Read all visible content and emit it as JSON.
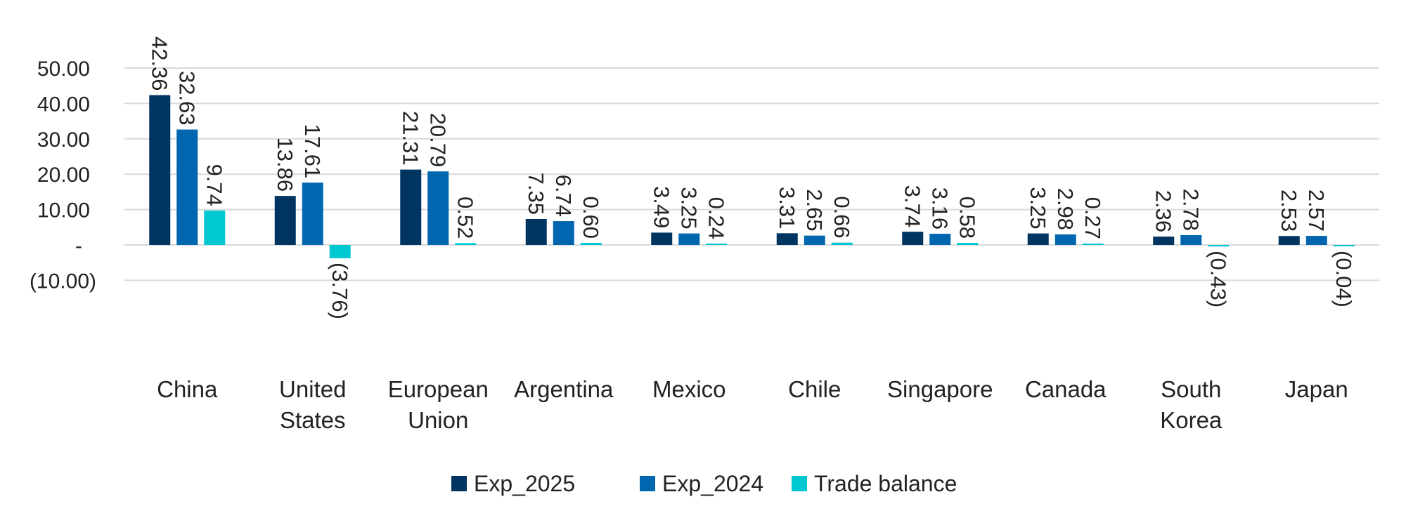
{
  "chart_data": {
    "type": "bar",
    "categories": [
      [
        "China"
      ],
      [
        "United",
        "States"
      ],
      [
        "European",
        "Union"
      ],
      [
        "Argentina"
      ],
      [
        "Mexico"
      ],
      [
        "Chile"
      ],
      [
        "Singapore"
      ],
      [
        "Canada"
      ],
      [
        "South",
        "Korea"
      ],
      [
        "Japan"
      ]
    ],
    "series": [
      {
        "name": "Exp_2025",
        "color": "#003561",
        "values": [
          42.36,
          13.86,
          21.31,
          7.35,
          3.49,
          3.31,
          3.74,
          3.25,
          2.36,
          2.53
        ],
        "labels": [
          "42.36",
          "13.86",
          "21.31",
          "7.35",
          "3.49",
          "3.31",
          "3.74",
          "3.25",
          "2.36",
          "2.53"
        ]
      },
      {
        "name": "Exp_2024",
        "color": "#0066B0",
        "values": [
          32.63,
          17.61,
          20.79,
          6.74,
          3.25,
          2.65,
          3.16,
          2.98,
          2.78,
          2.57
        ],
        "labels": [
          "32.63",
          "17.61",
          "20.79",
          "6.74",
          "3.25",
          "2.65",
          "3.16",
          "2.98",
          "2.78",
          "2.57"
        ]
      },
      {
        "name": "Trade balance",
        "color": "#00C8D2",
        "values": [
          9.74,
          -3.76,
          0.52,
          0.6,
          0.24,
          0.66,
          0.58,
          0.27,
          -0.43,
          -0.04
        ],
        "labels": [
          "9.74",
          "(3.76)",
          "0.52",
          "0.60",
          "0.24",
          "0.66",
          "0.58",
          "0.27",
          "(0.43)",
          "(0.04)"
        ]
      }
    ],
    "yticks": [
      {
        "value": 50,
        "label": "50.00"
      },
      {
        "value": 40,
        "label": "40.00"
      },
      {
        "value": 30,
        "label": "30.00"
      },
      {
        "value": 20,
        "label": "20.00"
      },
      {
        "value": 10,
        "label": "10.00"
      },
      {
        "value": 0,
        "label": "-"
      },
      {
        "value": -10,
        "label": "(10.00)"
      }
    ],
    "ylim": [
      -10,
      50
    ],
    "grid": true,
    "legend_position": "bottom",
    "gridline_color": "#D9D9D9"
  }
}
